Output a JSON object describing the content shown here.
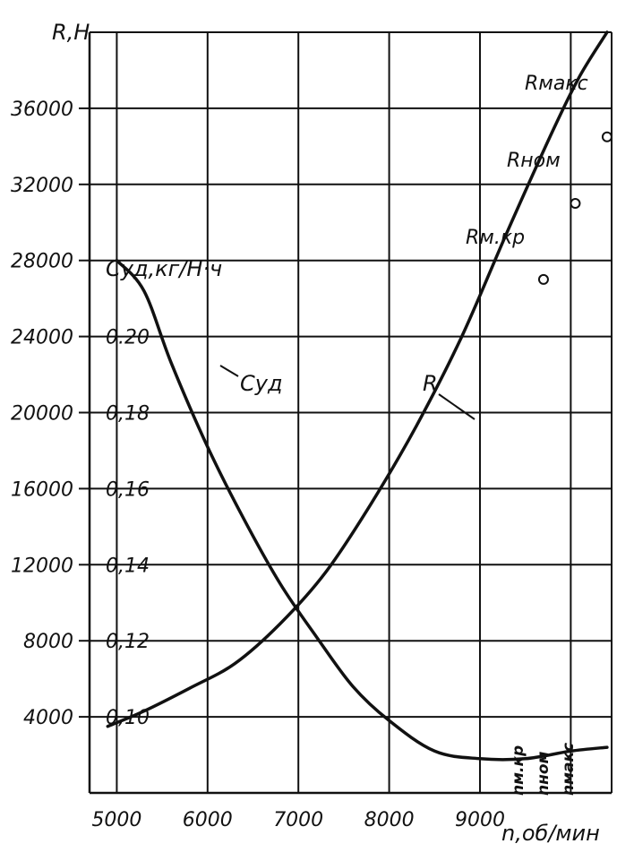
{
  "chart_data": {
    "type": "line",
    "title": "",
    "xlabel": "n,об/мин",
    "ylabel_left": "R,Н",
    "ylabel_right": "Суд,кг/Н·ч",
    "x_ticks": [
      "5000",
      "6000",
      "7000",
      "8000",
      "9000"
    ],
    "xlim": [
      4700,
      10450
    ],
    "y_ticks_R": [
      "4000",
      "8000",
      "12000",
      "16000",
      "20000",
      "24000",
      "28000",
      "32000",
      "36000"
    ],
    "ylim_R": [
      0,
      40000
    ],
    "y_ticks_c": [
      "0,10",
      "0,12",
      "0,14",
      "0,16",
      "0,18",
      "0.20"
    ],
    "ylim_c": [
      0.1,
      0.2
    ],
    "grid": true,
    "series": [
      {
        "name": "R",
        "axis": "left",
        "x": [
          4900,
          5300,
          5800,
          6300,
          6800,
          7300,
          7800,
          8300,
          8800,
          9300,
          9800,
          10100,
          10400
        ],
        "y": [
          3500,
          4300,
          5500,
          6800,
          8900,
          11600,
          15200,
          19300,
          24000,
          29500,
          34800,
          37700,
          40000
        ]
      },
      {
        "name": "Суд",
        "axis": "right",
        "x": [
          5000,
          5300,
          5600,
          6000,
          6400,
          6800,
          7200,
          7600,
          8000,
          8500,
          9000,
          9500,
          10000,
          10400
        ],
        "y": [
          0.22,
          0.212,
          0.193,
          0.171,
          0.152,
          0.135,
          0.121,
          0.108,
          0.099,
          0.091,
          0.089,
          0.089,
          0.091,
          0.092
        ]
      }
    ],
    "annotations": {
      "curve_label_R": "R",
      "curve_label_c": "Суд",
      "points": [
        {
          "label": "Rм.кр",
          "x": 9700,
          "y": 27000
        },
        {
          "label": "Rном",
          "x": 10050,
          "y": 31000
        },
        {
          "label": "Rмакс",
          "x": 10400,
          "y": 34500
        }
      ],
      "n_labels": [
        "nм.кр",
        "nном",
        "nмакс"
      ]
    }
  }
}
